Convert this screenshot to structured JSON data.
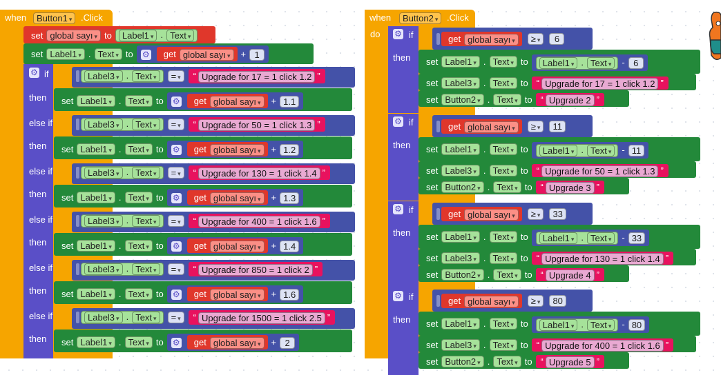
{
  "kw": {
    "when": "when",
    "do": "do",
    "click": ".Click",
    "if": "if",
    "then": "then",
    "elseif": "else if",
    "set": "set",
    "to": "to",
    "get": "get",
    "plus": "+",
    "minus": "-",
    "eq": "=",
    "gte": "≥",
    "dot": ".",
    "quote_open": "“",
    "quote_close": "”"
  },
  "comp": {
    "button1": "Button1",
    "button2": "Button2",
    "label1": "Label1",
    "label3": "Label3",
    "text": "Text",
    "var": "global sayı"
  },
  "left": {
    "branches": [
      {
        "cond": "Upgrade for 17 = 1 click 1.2",
        "inc": "1.1"
      },
      {
        "cond": "Upgrade for 50 = 1 click 1.3",
        "inc": "1.2"
      },
      {
        "cond": "Upgrade for 130 = 1 click 1.4",
        "inc": "1.3"
      },
      {
        "cond": "Upgrade for 400 = 1 click 1.6",
        "inc": "1.4"
      },
      {
        "cond": "Upgrade for 850 = 1 click 2",
        "inc": "1.6"
      },
      {
        "cond": "Upgrade for 1500 = 1 click 2.5",
        "inc": "2"
      }
    ],
    "first_add": "1"
  },
  "right": {
    "groups": [
      {
        "th": "6",
        "label3": "Upgrade for 17 = 1 click 1.2",
        "btn": "Upgrade 2"
      },
      {
        "th": "11",
        "label3": "Upgrade for 50 = 1 click 1.3",
        "btn": "Upgrade 3"
      },
      {
        "th": "33",
        "label3": "Upgrade for 130 = 1 click 1.4",
        "btn": "Upgrade 4"
      },
      {
        "th": "80",
        "label3": "Upgrade for 400 = 1 click 1.6",
        "btn": "Upgrade 5"
      }
    ]
  },
  "colors": {
    "event": "#f6a500",
    "logic": "#5a4fc7",
    "component_set": "#23893a",
    "component_get": "#a6e29a",
    "variable": "#e0372b",
    "math": "#4452a8",
    "text": "#e8125e"
  }
}
